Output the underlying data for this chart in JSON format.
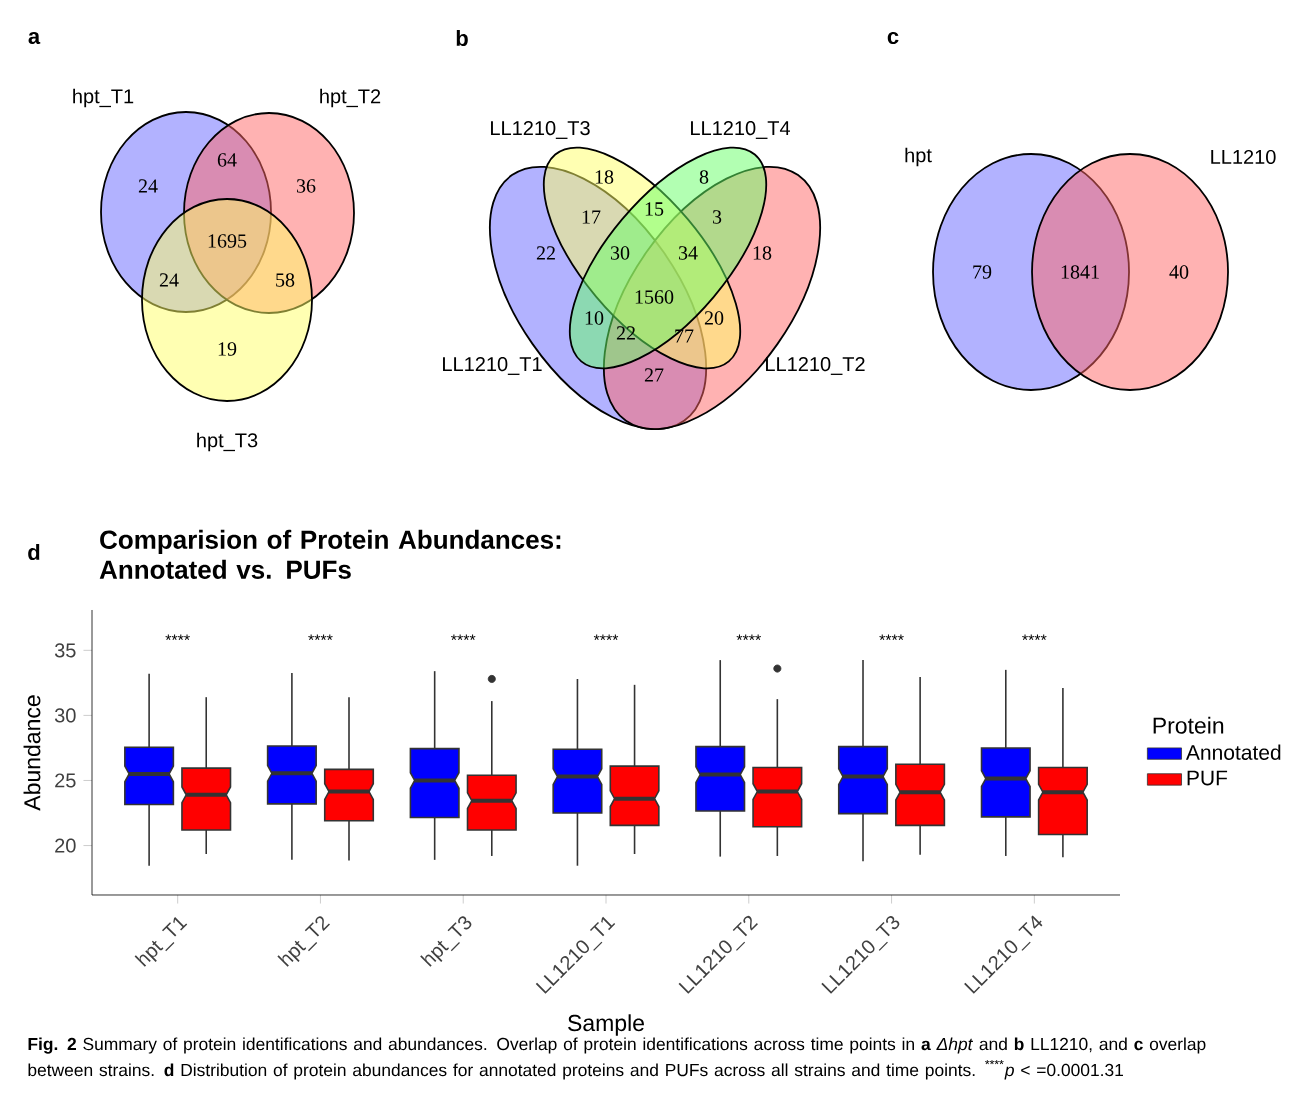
{
  "chart_data": [
    {
      "type": "other",
      "annotations": [
        "a",
        "hpt_T1",
        "hpt_T2",
        "hpt_T3",
        "24",
        "36",
        "19",
        "64",
        "24",
        "58",
        "1695"
      ],
      "colors": [
        "#6666ff",
        "#ff6666",
        "#ffff66"
      ]
    },
    {
      "type": "other",
      "annotations": [
        "b",
        "LL1210_T1",
        "LL1210_T2",
        "LL1210_T3",
        "LL1210_T4",
        "22",
        "18",
        "18",
        "8",
        "17",
        "15",
        "3",
        "30",
        "34",
        "10",
        "20",
        "1560",
        "22",
        "77",
        "27"
      ],
      "colors": [
        "#6666ff",
        "#ff6666",
        "#ffff66",
        "#66ff66"
      ]
    },
    {
      "type": "other",
      "annotations": [
        "c",
        "hpt",
        "LL1210",
        "79",
        "40",
        "1841"
      ],
      "colors": [
        "#6666ff",
        "#ff6666"
      ]
    },
    {
      "type": "box",
      "title": "Comparision of Protein Abundances: Annotated vs. PUFs",
      "xlabel": "Sample",
      "ylabel": "Abundance",
      "legend_title": "Protein",
      "legend": "right",
      "annotations": [
        "d",
        "****",
        "****",
        "****",
        "****",
        "****",
        "****",
        "****",
        "**Fig. 2** Summary of protein identifications and abundances. Overlap of protein identifications across time points in **a** *Δhpt* and **b** LL1210, and **c** overlap between strains. **d** Distribution of protein abundances for annotated proteins and PUFs across all strains and time points. $^{****}$*p* < =0.0001.31"
      ],
      "categories": [
        "hpt_T1",
        "hpt_T2",
        "hpt_T3",
        "LL1210_T1",
        "LL1210_T2",
        "LL1210_T3",
        "LL1210_T4"
      ],
      "ylim": [
        16.2,
        38.1
      ],
      "yticks": [
        20,
        25,
        30,
        35
      ],
      "series": [
        {
          "name": "Annotated",
          "color": "#0000ff",
          "boxes": [
            {
              "low": 18.45,
              "q1": 23.15,
              "median": 25.5,
              "q3": 27.55,
              "high": 33.2
            },
            {
              "low": 18.9,
              "q1": 23.2,
              "median": 25.55,
              "q3": 27.65,
              "high": 33.25
            },
            {
              "low": 18.9,
              "q1": 22.15,
              "median": 25.0,
              "q3": 27.45,
              "high": 33.4
            },
            {
              "low": 18.45,
              "q1": 22.5,
              "median": 25.3,
              "q3": 27.4,
              "high": 32.8
            },
            {
              "low": 19.15,
              "q1": 22.65,
              "median": 25.45,
              "q3": 27.6,
              "high": 34.25
            },
            {
              "low": 18.8,
              "q1": 22.45,
              "median": 25.3,
              "q3": 27.6,
              "high": 34.25
            },
            {
              "low": 19.2,
              "q1": 22.2,
              "median": 25.15,
              "q3": 27.5,
              "high": 33.5
            }
          ]
        },
        {
          "name": "PUF",
          "color": "#ff0000",
          "boxes": [
            {
              "low": 19.35,
              "q1": 21.2,
              "median": 23.9,
              "q3": 25.95,
              "high": 31.4
            },
            {
              "low": 18.85,
              "q1": 21.9,
              "median": 24.15,
              "q3": 25.85,
              "high": 31.4
            },
            {
              "low": 19.2,
              "q1": 21.2,
              "median": 23.45,
              "q3": 25.4,
              "high": 31.1,
              "outliers": [
                32.8
              ]
            },
            {
              "low": 19.35,
              "q1": 21.55,
              "median": 23.6,
              "q3": 26.1,
              "high": 32.35
            },
            {
              "low": 19.2,
              "q1": 21.45,
              "median": 24.15,
              "q3": 26.0,
              "high": 31.25,
              "outliers": [
                33.6
              ]
            },
            {
              "low": 19.3,
              "q1": 21.55,
              "median": 24.1,
              "q3": 26.25,
              "high": 32.95
            },
            {
              "low": 19.1,
              "q1": 20.85,
              "median": 24.1,
              "q3": 26.0,
              "high": 32.1
            }
          ]
        }
      ]
    }
  ]
}
